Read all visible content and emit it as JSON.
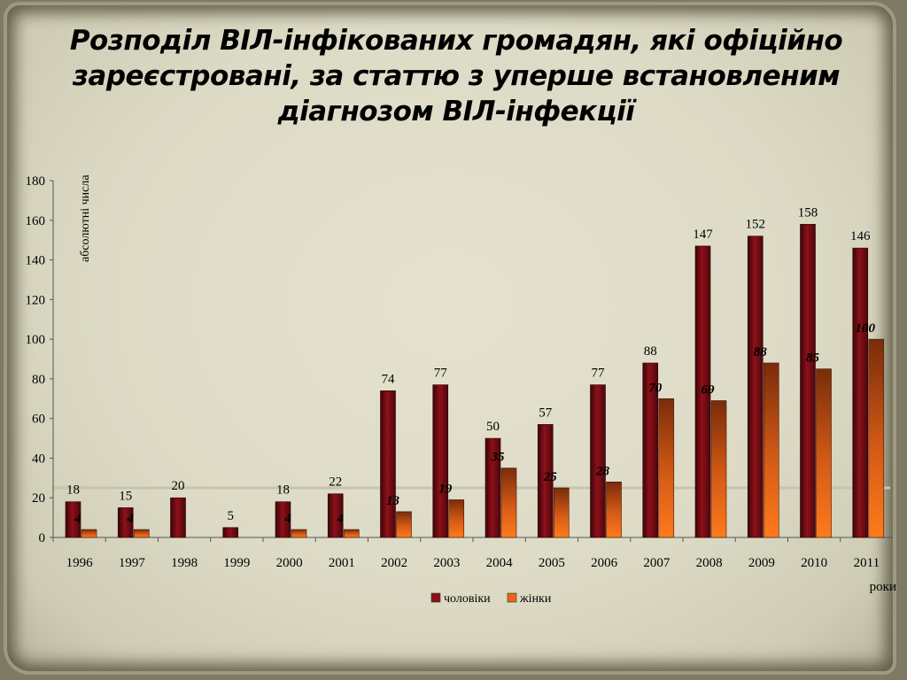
{
  "slide": {
    "title": "Розподіл ВІЛ-інфікованих громадян, які офіційно зареєстровані, за статтю з уперше встановленим діагнозом ВІЛ-інфекції"
  },
  "chart_data": {
    "type": "bar",
    "title": "Розподіл ВІЛ-інфікованих громадян, які офіційно зареєстровані, за статтю з уперше встановленим діагнозом ВІЛ-інфекції",
    "ylabel": "абсолютні числа",
    "xlabel": "роки",
    "ylim": [
      0,
      180
    ],
    "yticks": [
      0,
      20,
      40,
      60,
      80,
      100,
      120,
      140,
      160,
      180
    ],
    "categories": [
      "1996",
      "1997",
      "1998",
      "1999",
      "2000",
      "2001",
      "2002",
      "2003",
      "2004",
      "2005",
      "2006",
      "2007",
      "2008",
      "2009",
      "2010",
      "2011"
    ],
    "series": [
      {
        "name": "чоловіки",
        "color": "#8b1218",
        "values": [
          18,
          15,
          20,
          5,
          18,
          22,
          74,
          77,
          50,
          57,
          77,
          88,
          147,
          152,
          158,
          146
        ]
      },
      {
        "name": "жінки",
        "color": "#e8661c",
        "values": [
          4,
          4,
          null,
          null,
          4,
          4,
          13,
          19,
          35,
          25,
          28,
          70,
          69,
          88,
          85,
          100
        ]
      }
    ],
    "legend_position": "bottom",
    "grid": false
  }
}
